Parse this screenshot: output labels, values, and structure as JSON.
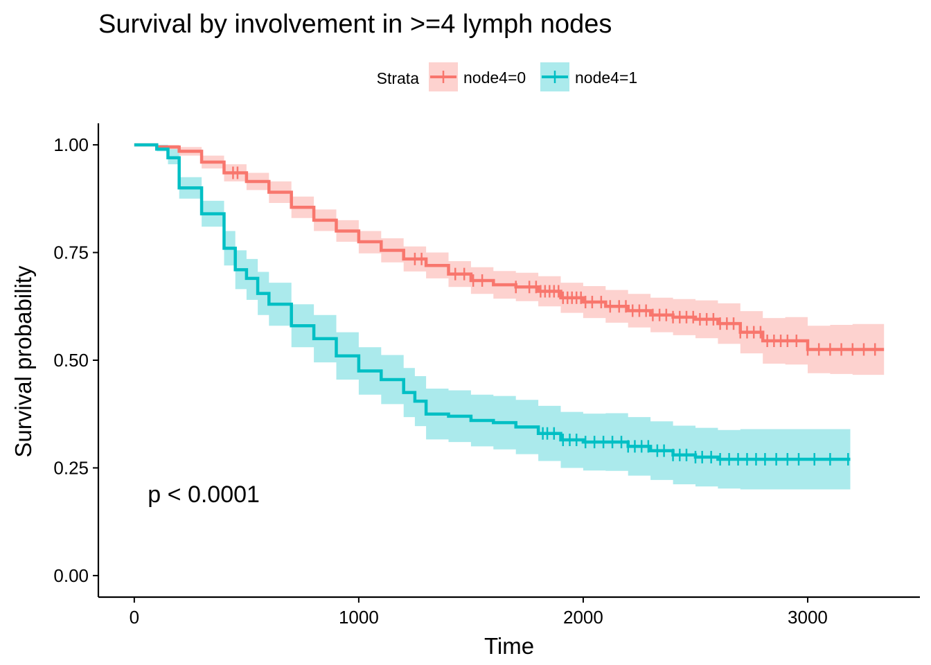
{
  "chart_data": {
    "type": "line",
    "subtype": "kaplan-meier",
    "title": "Survival by involvement in >=4 lymph nodes",
    "xlabel": "Time",
    "ylabel": "Survival probability",
    "xlim": [
      -160,
      3500
    ],
    "ylim": [
      -0.05,
      1.05
    ],
    "x_ticks": [
      0,
      1000,
      2000,
      3000
    ],
    "x_tick_labels": [
      "0",
      "1000",
      "2000",
      "3000"
    ],
    "y_ticks": [
      0,
      0.25,
      0.5,
      0.75,
      1.0
    ],
    "y_tick_labels": [
      "0.00",
      "0.25",
      "0.50",
      "0.75",
      "1.00"
    ],
    "grid": false,
    "legend": {
      "title": "Strata",
      "position": "top"
    },
    "annotation": {
      "text": "p < 0.0001",
      "x": 60,
      "y": 0.19
    },
    "series": [
      {
        "name": "node4=0",
        "color": "#F8766D",
        "band_color": "#F8766D",
        "x": [
          0,
          100,
          200,
          300,
          400,
          500,
          600,
          700,
          800,
          900,
          1000,
          1100,
          1200,
          1300,
          1400,
          1500,
          1600,
          1700,
          1800,
          1900,
          2000,
          2100,
          2200,
          2300,
          2400,
          2500,
          2600,
          2700,
          2800,
          2900,
          3000,
          3100,
          3200,
          3340
        ],
        "y": [
          1.0,
          0.995,
          0.985,
          0.96,
          0.935,
          0.915,
          0.89,
          0.855,
          0.825,
          0.8,
          0.775,
          0.755,
          0.735,
          0.72,
          0.7,
          0.685,
          0.675,
          0.67,
          0.66,
          0.645,
          0.635,
          0.625,
          0.615,
          0.605,
          0.6,
          0.595,
          0.585,
          0.565,
          0.545,
          0.545,
          0.525,
          0.525,
          0.525,
          0.525
        ],
        "lower": [
          1.0,
          0.99,
          0.975,
          0.945,
          0.915,
          0.895,
          0.865,
          0.83,
          0.8,
          0.775,
          0.748,
          0.727,
          0.706,
          0.69,
          0.67,
          0.654,
          0.643,
          0.637,
          0.625,
          0.61,
          0.598,
          0.587,
          0.576,
          0.565,
          0.558,
          0.551,
          0.538,
          0.516,
          0.492,
          0.49,
          0.47,
          0.468,
          0.466,
          0.466
        ],
        "upper": [
          1.0,
          1.0,
          0.995,
          0.975,
          0.955,
          0.935,
          0.915,
          0.88,
          0.85,
          0.825,
          0.8,
          0.783,
          0.764,
          0.75,
          0.73,
          0.716,
          0.707,
          0.703,
          0.695,
          0.68,
          0.672,
          0.663,
          0.654,
          0.645,
          0.642,
          0.639,
          0.632,
          0.614,
          0.598,
          0.6,
          0.58,
          0.582,
          0.584,
          0.584
        ],
        "censor_x": [
          440,
          460,
          1250,
          1280,
          1430,
          1470,
          1510,
          1550,
          1700,
          1760,
          1790,
          1810,
          1830,
          1850,
          1870,
          1890,
          1910,
          1930,
          1950,
          1970,
          1990,
          2010,
          2040,
          2080,
          2120,
          2160,
          2190,
          2220,
          2250,
          2280,
          2310,
          2340,
          2370,
          2400,
          2430,
          2460,
          2490,
          2520,
          2550,
          2580,
          2610,
          2640,
          2670,
          2700,
          2730,
          2760,
          2790,
          2820,
          2850,
          2880,
          2910,
          2950,
          3000,
          3050,
          3100,
          3150,
          3200,
          3250,
          3300
        ]
      },
      {
        "name": "node4=1",
        "color": "#00BFC4",
        "band_color": "#00BFC4",
        "x": [
          0,
          100,
          150,
          200,
          300,
          400,
          450,
          500,
          550,
          600,
          700,
          800,
          900,
          1000,
          1100,
          1200,
          1250,
          1300,
          1400,
          1500,
          1600,
          1700,
          1800,
          1900,
          2000,
          2100,
          2200,
          2300,
          2400,
          2500,
          2600,
          2700,
          2800,
          2900,
          3000,
          3100,
          3190
        ],
        "y": [
          1.0,
          0.99,
          0.97,
          0.9,
          0.84,
          0.76,
          0.71,
          0.69,
          0.655,
          0.63,
          0.58,
          0.55,
          0.51,
          0.475,
          0.455,
          0.425,
          0.405,
          0.375,
          0.37,
          0.36,
          0.355,
          0.345,
          0.33,
          0.315,
          0.31,
          0.31,
          0.3,
          0.29,
          0.28,
          0.275,
          0.27,
          0.27,
          0.27,
          0.27,
          0.27,
          0.27,
          0.27
        ],
        "lower": [
          1.0,
          0.985,
          0.955,
          0.875,
          0.81,
          0.72,
          0.665,
          0.64,
          0.605,
          0.58,
          0.53,
          0.495,
          0.455,
          0.42,
          0.398,
          0.368,
          0.347,
          0.316,
          0.31,
          0.3,
          0.293,
          0.282,
          0.266,
          0.25,
          0.244,
          0.243,
          0.232,
          0.222,
          0.212,
          0.207,
          0.202,
          0.2,
          0.2,
          0.2,
          0.2,
          0.2,
          0.2
        ],
        "upper": [
          1.0,
          1.0,
          0.99,
          0.925,
          0.87,
          0.8,
          0.755,
          0.735,
          0.705,
          0.68,
          0.63,
          0.605,
          0.565,
          0.53,
          0.512,
          0.482,
          0.463,
          0.434,
          0.43,
          0.42,
          0.417,
          0.408,
          0.394,
          0.38,
          0.376,
          0.377,
          0.368,
          0.358,
          0.348,
          0.343,
          0.338,
          0.34,
          0.34,
          0.34,
          0.34,
          0.34,
          0.34
        ],
        "censor_x": [
          1820,
          1840,
          1870,
          1910,
          1940,
          1970,
          2010,
          2050,
          2090,
          2130,
          2170,
          2200,
          2230,
          2260,
          2290,
          2330,
          2360,
          2400,
          2430,
          2460,
          2500,
          2530,
          2570,
          2610,
          2650,
          2690,
          2730,
          2770,
          2810,
          2860,
          2910,
          2960,
          3030,
          3100,
          3180
        ]
      }
    ]
  }
}
